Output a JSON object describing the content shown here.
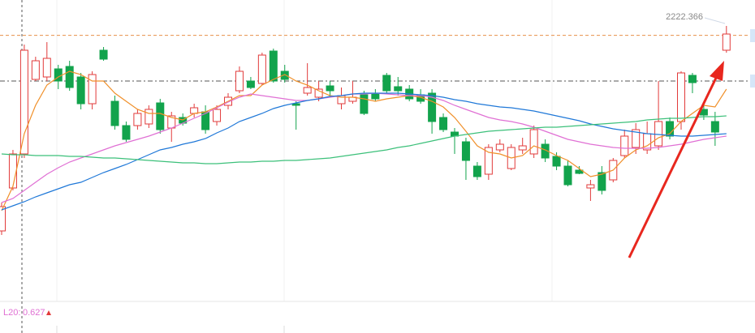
{
  "chart_data": {
    "type": "candlestick",
    "open": [
      1981,
      2034,
      2076,
      2168,
      2171,
      2181,
      2184,
      2171,
      2138,
      2204,
      2141,
      2111,
      2111,
      2113,
      2139,
      2108,
      2121,
      2126,
      2128,
      2116,
      2136,
      2154,
      2166,
      2163,
      2203,
      2178,
      2138,
      2151,
      2146,
      2160,
      2138,
      2141,
      2149,
      2151,
      2173,
      2159,
      2156,
      2149,
      2151,
      2121,
      2103,
      2091,
      2061,
      2051,
      2081,
      2058,
      2081,
      2076,
      2088,
      2073,
      2061,
      2056,
      2034,
      2053,
      2044,
      2074,
      2084,
      2081,
      2086,
      2116,
      2116,
      2173,
      2131,
      2116,
      2204
    ],
    "high": [
      2016,
      2081,
      2211,
      2196,
      2214,
      2186,
      2191,
      2176,
      2178,
      2208,
      2148,
      2116,
      2131,
      2136,
      2144,
      2128,
      2126,
      2138,
      2136,
      2136,
      2151,
      2184,
      2171,
      2201,
      2206,
      2186,
      2141,
      2188,
      2166,
      2166,
      2158,
      2166,
      2154,
      2156,
      2176,
      2171,
      2161,
      2156,
      2156,
      2126,
      2108,
      2096,
      2066,
      2088,
      2094,
      2088,
      2096,
      2111,
      2094,
      2078,
      2068,
      2061,
      2044,
      2061,
      2071,
      2106,
      2114,
      2116,
      2166,
      2121,
      2178,
      2176,
      2136,
      2128,
      2234
    ],
    "low": [
      1976,
      2031,
      2071,
      2166,
      2166,
      2156,
      2154,
      2131,
      2131,
      2191,
      2106,
      2091,
      2106,
      2108,
      2101,
      2091,
      2111,
      2121,
      2101,
      2111,
      2131,
      2151,
      2156,
      2161,
      2164,
      2164,
      2106,
      2148,
      2141,
      2148,
      2131,
      2138,
      2124,
      2141,
      2151,
      2148,
      2141,
      2138,
      2101,
      2103,
      2076,
      2044,
      2044,
      2044,
      2078,
      2056,
      2076,
      2071,
      2066,
      2056,
      2036,
      2051,
      2018,
      2026,
      2041,
      2071,
      2076,
      2076,
      2081,
      2094,
      2106,
      2151,
      2118,
      2086,
      2201
    ],
    "close": [
      2011,
      2076,
      2204,
      2191,
      2194,
      2166,
      2158,
      2138,
      2174,
      2193,
      2111,
      2094,
      2126,
      2131,
      2106,
      2123,
      2114,
      2133,
      2106,
      2131,
      2146,
      2178,
      2158,
      2198,
      2166,
      2168,
      2136,
      2158,
      2156,
      2154,
      2148,
      2146,
      2126,
      2144,
      2154,
      2154,
      2144,
      2141,
      2116,
      2106,
      2098,
      2068,
      2048,
      2084,
      2088,
      2084,
      2086,
      2106,
      2071,
      2061,
      2038,
      2052,
      2038,
      2031,
      2068,
      2098,
      2106,
      2101,
      2116,
      2098,
      2176,
      2164,
      2124,
      2103,
      2224
    ],
    "up_color": "#e23a3a",
    "down_color": "#12a34c",
    "series": [
      {
        "color": "#f0902a",
        "values": [
          2006,
          2036,
          2101,
          2136,
          2161,
          2171,
          2178,
          2174,
          2166,
          2166,
          2151,
          2141,
          2131,
          2126,
          2126,
          2121,
          2118,
          2126,
          2128,
          2134,
          2141,
          2148,
          2148,
          2161,
          2168,
          2174,
          2166,
          2161,
          2154,
          2148,
          2146,
          2146,
          2144,
          2141,
          2144,
          2146,
          2148,
          2146,
          2141,
          2134,
          2121,
          2104,
          2086,
          2078,
          2076,
          2071,
          2074,
          2086,
          2081,
          2074,
          2068,
          2058,
          2048,
          2051,
          2056,
          2071,
          2081,
          2086,
          2096,
          2101,
          2116,
          2126,
          2136,
          2134,
          2156
        ]
      },
      {
        "color": "#e070d4",
        "values": [
          2016,
          2021,
          2031,
          2041,
          2051,
          2059,
          2066,
          2071,
          2076,
          2081,
          2086,
          2090,
          2094,
          2098,
          2103,
          2108,
          2114,
          2120,
          2126,
          2133,
          2140,
          2146,
          2150,
          2148,
          2146,
          2144,
          2142,
          2142,
          2144,
          2146,
          2148,
          2150,
          2150,
          2151,
          2150,
          2149,
          2148,
          2148,
          2146,
          2142,
          2136,
          2131,
          2126,
          2121,
          2118,
          2116,
          2113,
          2109,
          2104,
          2099,
          2094,
          2091,
          2088,
          2086,
          2084,
          2083,
          2083,
          2083,
          2084,
          2086,
          2088,
          2091,
          2094,
          2096,
          2098
        ]
      },
      {
        "color": "#1f78d8",
        "values": [
          2007,
          2012,
          2017,
          2023,
          2028,
          2033,
          2038,
          2041,
          2047,
          2053,
          2058,
          2063,
          2069,
          2075,
          2081,
          2084,
          2088,
          2091,
          2095,
          2102,
          2108,
          2116,
          2121,
          2126,
          2132,
          2136,
          2139,
          2142,
          2144,
          2147,
          2148,
          2150,
          2151,
          2151,
          2151,
          2151,
          2150,
          2149,
          2148,
          2146,
          2143,
          2141,
          2138,
          2136,
          2134,
          2133,
          2131,
          2129,
          2126,
          2123,
          2120,
          2117,
          2113,
          2110,
          2107,
          2105,
          2103,
          2101,
          2100,
          2099,
          2098,
          2098,
          2099,
          2100,
          2101
        ]
      },
      {
        "color": "#3cc07a",
        "values": [
          2076,
          2075,
          2075,
          2074,
          2074,
          2074,
          2073,
          2073,
          2072,
          2071,
          2071,
          2070,
          2069,
          2068,
          2067,
          2066,
          2065,
          2065,
          2064,
          2064,
          2065,
          2066,
          2066,
          2067,
          2067,
          2068,
          2068,
          2069,
          2070,
          2071,
          2073,
          2075,
          2077,
          2079,
          2081,
          2084,
          2086,
          2089,
          2092,
          2095,
          2098,
          2100,
          2102,
          2104,
          2105,
          2106,
          2107,
          2108,
          2109,
          2109,
          2110,
          2111,
          2112,
          2113,
          2114,
          2115,
          2116,
          2118,
          2119,
          2120,
          2120,
          2121,
          2122,
          2122,
          2123
        ]
      }
    ],
    "price_lines": [
      {
        "value": 2222.366,
        "color": "#e8904a"
      },
      {
        "value": 2166,
        "color": "#555555"
      }
    ],
    "ylim": [
      1894,
      2266
    ],
    "indicator": {
      "name": "L20:",
      "value": 0.627
    }
  }
}
